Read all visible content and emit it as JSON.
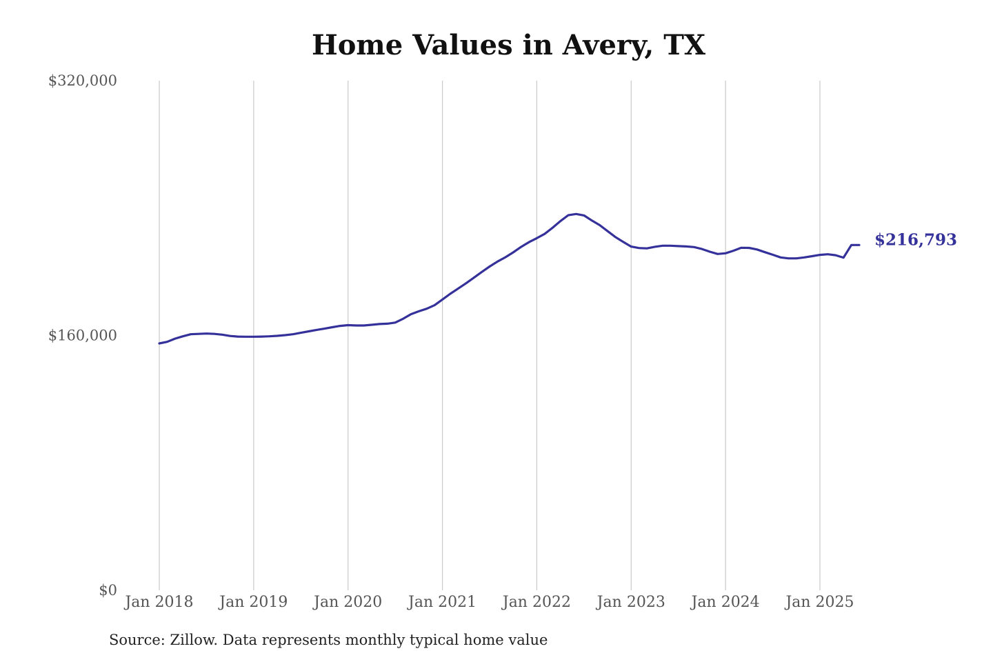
{
  "chart_data": {
    "type": "line",
    "title": "Home Values in Avery, TX",
    "source": "Source: Zillow. Data represents monthly typical home value",
    "xlabel": "",
    "ylabel": "",
    "ylim": [
      0,
      320000
    ],
    "y_ticks": [
      {
        "value": 0,
        "label": "$0"
      },
      {
        "value": 160000,
        "label": "$160,000"
      },
      {
        "value": 320000,
        "label": "$320,000"
      }
    ],
    "x_ticks": [
      {
        "date": "2018-01",
        "label": "Jan 2018"
      },
      {
        "date": "2019-01",
        "label": "Jan 2019"
      },
      {
        "date": "2020-01",
        "label": "Jan 2020"
      },
      {
        "date": "2021-01",
        "label": "Jan 2021"
      },
      {
        "date": "2022-01",
        "label": "Jan 2022"
      },
      {
        "date": "2023-01",
        "label": "Jan 2023"
      },
      {
        "date": "2024-01",
        "label": "Jan 2024"
      },
      {
        "date": "2025-01",
        "label": "Jan 2025"
      }
    ],
    "grid": "vertical",
    "line_color": "#35319a",
    "end_label": "$216,793",
    "series": [
      {
        "name": "",
        "x": [
          "2018-01",
          "2018-02",
          "2018-03",
          "2018-04",
          "2018-05",
          "2018-06",
          "2018-07",
          "2018-08",
          "2018-09",
          "2018-10",
          "2018-11",
          "2018-12",
          "2019-01",
          "2019-02",
          "2019-03",
          "2019-04",
          "2019-05",
          "2019-06",
          "2019-07",
          "2019-08",
          "2019-09",
          "2019-10",
          "2019-11",
          "2019-12",
          "2020-01",
          "2020-02",
          "2020-03",
          "2020-04",
          "2020-05",
          "2020-06",
          "2020-07",
          "2020-08",
          "2020-09",
          "2020-10",
          "2020-11",
          "2020-12",
          "2021-01",
          "2021-02",
          "2021-03",
          "2021-04",
          "2021-05",
          "2021-06",
          "2021-07",
          "2021-08",
          "2021-09",
          "2021-10",
          "2021-11",
          "2021-12",
          "2022-01",
          "2022-02",
          "2022-03",
          "2022-04",
          "2022-05",
          "2022-06",
          "2022-07",
          "2022-08",
          "2022-09",
          "2022-10",
          "2022-11",
          "2022-12",
          "2023-01",
          "2023-02",
          "2023-03",
          "2023-04",
          "2023-05",
          "2023-06",
          "2023-07",
          "2023-08",
          "2023-09",
          "2023-10",
          "2023-11",
          "2023-12",
          "2024-01",
          "2024-02",
          "2024-03",
          "2024-04",
          "2024-05",
          "2024-06",
          "2024-07",
          "2024-08",
          "2024-09",
          "2024-10",
          "2024-11",
          "2024-12",
          "2025-01",
          "2025-02",
          "2025-03",
          "2025-04",
          "2025-05",
          "2025-06"
        ],
        "values": [
          155000,
          156000,
          158000,
          159500,
          160800,
          161000,
          161200,
          161000,
          160500,
          159700,
          159300,
          159200,
          159200,
          159300,
          159500,
          159800,
          160200,
          160800,
          161700,
          162600,
          163500,
          164300,
          165200,
          166000,
          166500,
          166300,
          166300,
          166700,
          167200,
          167400,
          168100,
          170500,
          173400,
          175200,
          176800,
          179000,
          182600,
          186200,
          189500,
          192800,
          196300,
          199900,
          203300,
          206400,
          209100,
          212200,
          215600,
          218600,
          221100,
          223800,
          227600,
          231800,
          235500,
          236300,
          235400,
          232200,
          229300,
          225500,
          221800,
          218700,
          215800,
          214900,
          214700,
          215700,
          216400,
          216400,
          216100,
          215900,
          215500,
          214300,
          212600,
          211200,
          211600,
          213200,
          215100,
          215000,
          214000,
          212300,
          210700,
          209000,
          208400,
          208400,
          209000,
          209800,
          210600,
          211000,
          210400,
          208900,
          216793,
          216793
        ]
      }
    ]
  }
}
